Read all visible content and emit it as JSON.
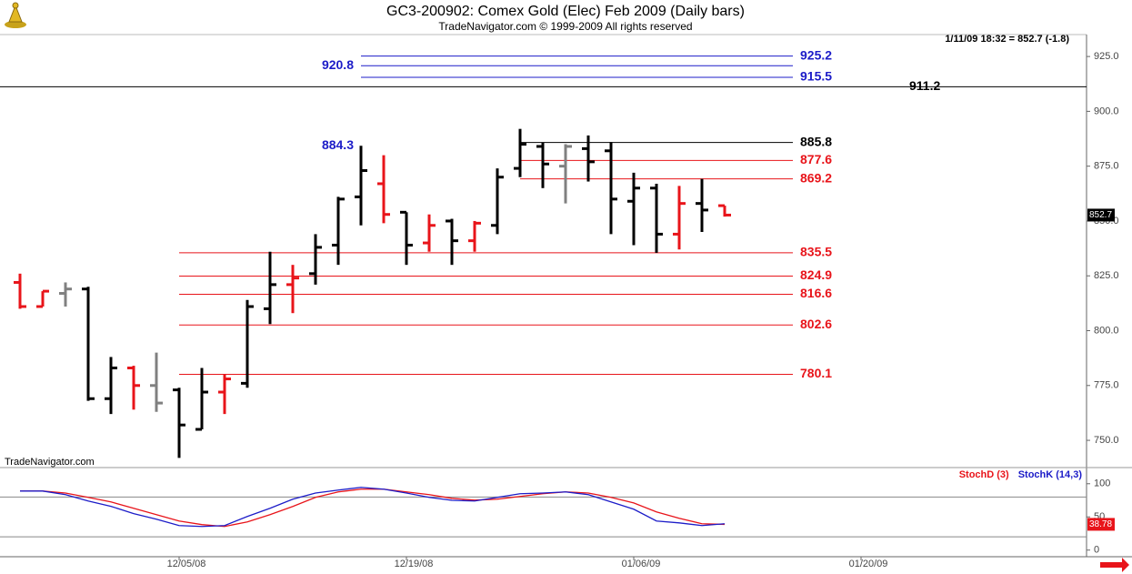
{
  "header": {
    "title": "GC3-200902:  Comex Gold (Elec) Feb 2009  (Daily bars)",
    "subtitle": "TradeNavigator.com © 1999-2009 All rights reserved",
    "quote": "1/11/09 18:32 = 852.7 (-1.8)",
    "watermark": "TradeNavigator.com"
  },
  "chart_data": [
    {
      "type": "ohlc",
      "open": [
        822,
        811,
        817,
        819,
        769,
        783,
        775,
        773,
        755,
        772,
        776,
        810,
        821,
        826,
        839,
        861,
        867,
        854,
        840,
        850,
        841,
        848,
        874,
        884,
        875,
        883,
        882,
        859,
        865,
        844,
        858,
        857
      ],
      "high": [
        826,
        818,
        822,
        820,
        788,
        784,
        790,
        774,
        783,
        780,
        814,
        836,
        830,
        844,
        861,
        884.3,
        880,
        854,
        853,
        851,
        850,
        874,
        892,
        885.8,
        885,
        889,
        886,
        872,
        867,
        866,
        869.2,
        857
      ],
      "low": [
        810,
        811,
        811,
        768,
        762,
        764,
        763,
        742,
        755,
        762,
        774,
        803,
        808,
        821,
        830,
        848,
        849,
        830,
        836,
        830,
        836,
        844,
        870,
        865,
        858,
        868,
        844,
        839,
        835.5,
        837,
        845,
        852
      ],
      "close": [
        811,
        818,
        819,
        769,
        783,
        775,
        767,
        757,
        772,
        778,
        811,
        821,
        824,
        838,
        860,
        873,
        853,
        839,
        848,
        841,
        849,
        870,
        885,
        876,
        884,
        877,
        860,
        865,
        844,
        858,
        855,
        852.7
      ],
      "colors": [
        "#e8141a",
        "#e8141a",
        "#808080",
        "#000000",
        "#000000",
        "#e8141a",
        "#808080",
        "#000000",
        "#000000",
        "#e8141a",
        "#000000",
        "#000000",
        "#e8141a",
        "#000000",
        "#000000",
        "#000000",
        "#e8141a",
        "#000000",
        "#e8141a",
        "#000000",
        "#e8141a",
        "#000000",
        "#000000",
        "#000000",
        "#808080",
        "#000000",
        "#000000",
        "#000000",
        "#000000",
        "#e8141a",
        "#000000",
        "#e8141a"
      ],
      "ylim": [
        738,
        935
      ],
      "yticks": [
        {
          "value": 750,
          "label": "750.0"
        },
        {
          "value": 775,
          "label": "775.0"
        },
        {
          "value": 800,
          "label": "800.0"
        },
        {
          "value": 825,
          "label": "825.0"
        },
        {
          "value": 850,
          "label": "850.0"
        },
        {
          "value": 875,
          "label": "875.0"
        },
        {
          "value": 900,
          "label": "900.0"
        },
        {
          "value": 925,
          "label": "925.0"
        }
      ],
      "levels": [
        {
          "value": 925.2,
          "color": "#1c1cc8",
          "start": 15,
          "end": 34,
          "label_side": "right"
        },
        {
          "value": 920.8,
          "color": "#1c1cc8",
          "start": 15,
          "end": 34,
          "label_side": "left"
        },
        {
          "value": 915.5,
          "color": "#1c1cc8",
          "start": 15,
          "end": 34,
          "label_side": "right"
        },
        {
          "value": 911.2,
          "color": "#000000",
          "start": null,
          "end": null,
          "label_side": "right"
        },
        {
          "value": 885.8,
          "color": "#000000",
          "start": 22,
          "end": 34,
          "label_side": "right"
        },
        {
          "value": 877.6,
          "color": "#e8141a",
          "start": 22,
          "end": 34,
          "label_side": "right"
        },
        {
          "value": 869.2,
          "color": "#e8141a",
          "start": 22,
          "end": 34,
          "label_side": "right"
        },
        {
          "value": 835.5,
          "color": "#e8141a",
          "start": 7,
          "end": 34,
          "label_side": "right"
        },
        {
          "value": 824.9,
          "color": "#e8141a",
          "start": 7,
          "end": 34,
          "label_side": "right"
        },
        {
          "value": 816.6,
          "color": "#e8141a",
          "start": 7,
          "end": 34,
          "label_side": "right"
        },
        {
          "value": 802.6,
          "color": "#e8141a",
          "start": 7,
          "end": 34,
          "label_side": "right"
        },
        {
          "value": 780.1,
          "color": "#e8141a",
          "start": 7,
          "end": 34,
          "label_side": "right"
        }
      ],
      "annotations": [
        {
          "value": 884.3,
          "x": 15,
          "color": "#1c1cc8"
        }
      ]
    },
    {
      "type": "line",
      "categories": [
        null,
        null,
        null,
        null,
        null,
        null,
        null,
        "12/05/08",
        null,
        null,
        null,
        null,
        null,
        null,
        null,
        null,
        null,
        "12/19/08",
        null,
        null,
        null,
        null,
        null,
        null,
        null,
        null,
        null,
        "01/06/09",
        null,
        null,
        null,
        null,
        null,
        null,
        null,
        null,
        null,
        "01/20/09"
      ],
      "series": [
        {
          "name": "StochD (3)",
          "color": "#e8141a",
          "values": [
            89,
            89,
            86,
            79.5,
            72.6,
            63,
            53.4,
            43.8,
            38.4,
            35.6,
            42.5,
            53.4,
            65.8,
            79.5,
            87.7,
            91.8,
            91.8,
            87.7,
            83.6,
            78,
            75.3,
            76.7,
            80.8,
            85,
            87.7,
            86,
            79.5,
            71,
            57.5,
            48,
            39.7,
            38.78,
            null,
            null,
            null,
            null,
            null,
            null
          ]
        },
        {
          "name": "StochK (14,3)",
          "color": "#1c1cc8",
          "values": [
            89,
            89,
            83.6,
            74,
            66,
            55,
            46.6,
            37,
            35.6,
            37,
            50.7,
            63,
            76.7,
            86,
            90.4,
            94.5,
            91.8,
            86,
            79.5,
            75,
            74,
            79.5,
            85,
            86,
            87.7,
            83.6,
            72.6,
            61.6,
            43.8,
            41,
            37,
            39.7,
            null,
            null,
            null,
            null,
            null,
            null
          ]
        }
      ],
      "ylim": [
        -10,
        123
      ],
      "yticks": [
        0,
        50,
        100
      ],
      "reference_lines": [
        20,
        80
      ]
    }
  ]
}
